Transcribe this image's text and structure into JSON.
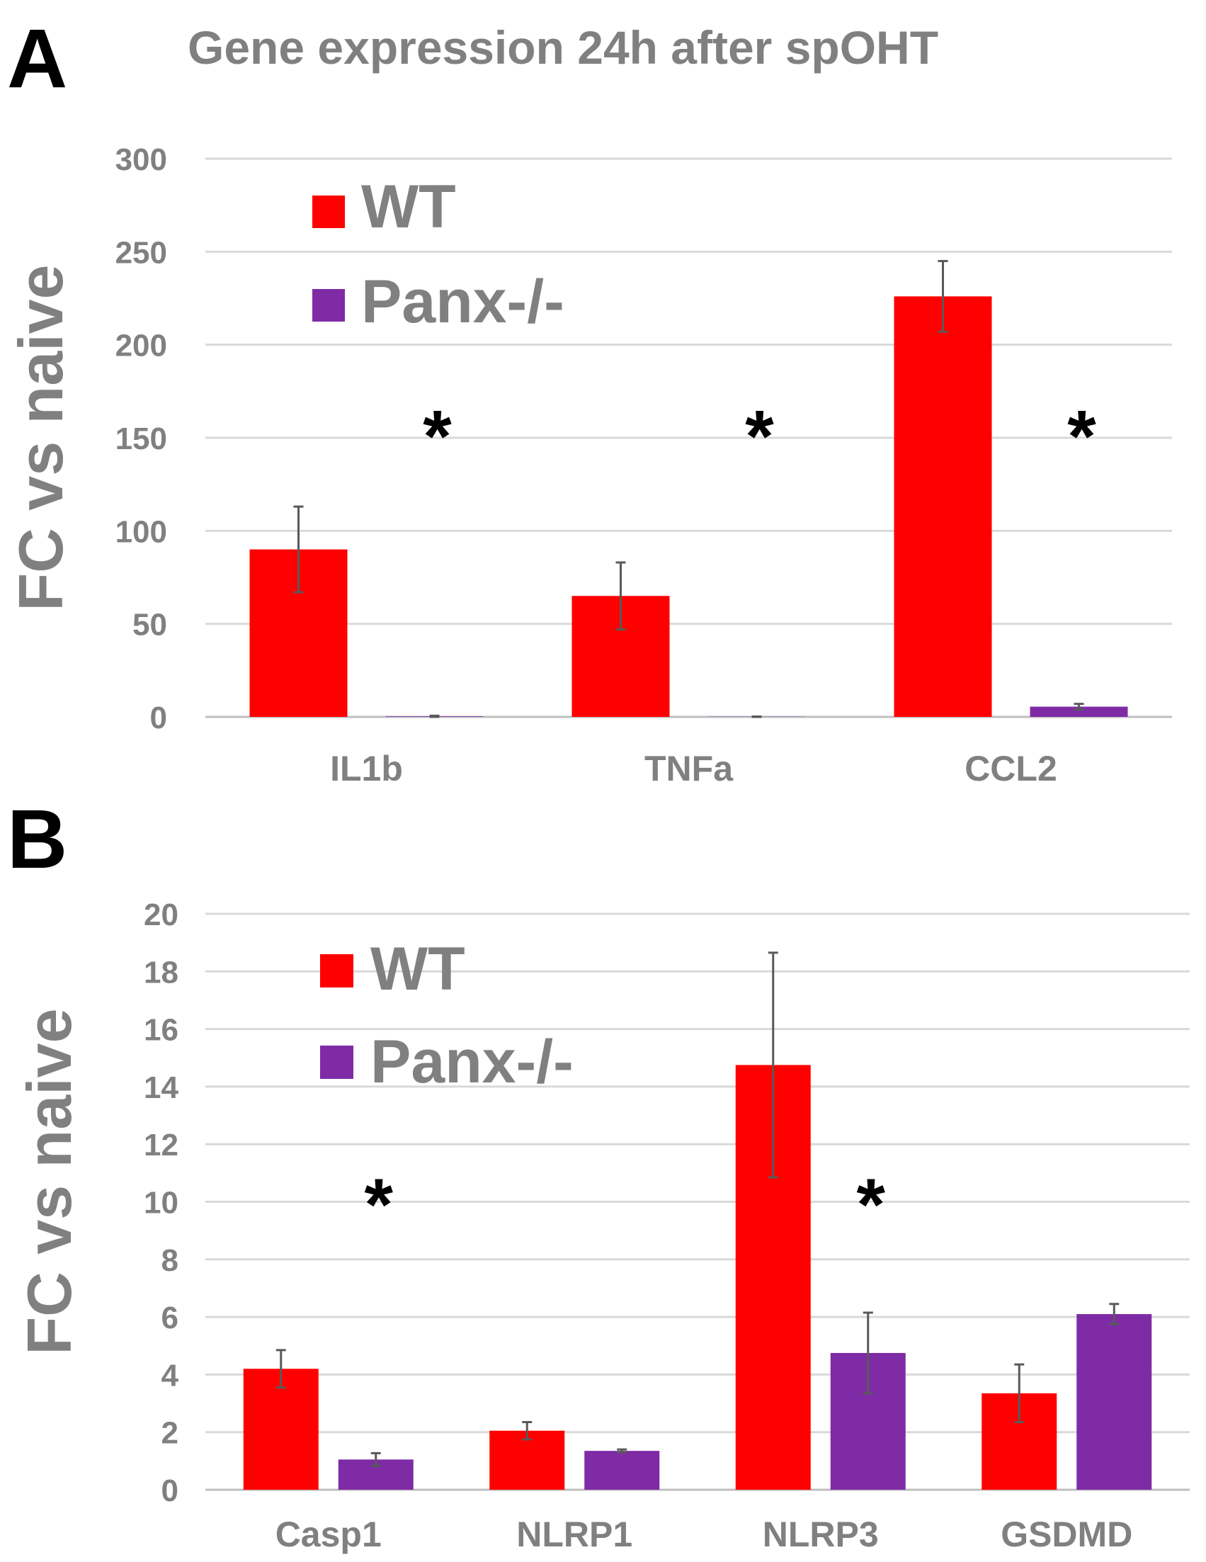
{
  "colors": {
    "wt": "#FF0000",
    "panx": "#7F2BA6",
    "text_gray": "#808080",
    "grid": "#D9D9D9",
    "axis": "#BFBFBF",
    "errorbar": "#595959"
  },
  "panels": {
    "a": {
      "label": "A"
    },
    "b": {
      "label": "B"
    }
  },
  "chart_data": [
    {
      "panel": "A",
      "type": "bar",
      "title": "Gene expression 24h after spOHT",
      "ylabel": "FC vs naive",
      "xlabel": "",
      "ylim": [
        0,
        300
      ],
      "yticks": [
        0,
        50,
        100,
        150,
        200,
        250,
        300
      ],
      "grid": true,
      "legend_position": "top-left",
      "categories": [
        "IL1b",
        "TNFa",
        "CCL2"
      ],
      "series": [
        {
          "name": "WT",
          "color": "#FF0000",
          "values": [
            90,
            65,
            226
          ],
          "errors": [
            23,
            18,
            19
          ]
        },
        {
          "name": "Panx-/-",
          "color": "#7F2BA6",
          "values": [
            0.3,
            0.1,
            5.5
          ],
          "errors": [
            0.3,
            0.1,
            1.5
          ]
        }
      ],
      "annotations": [
        {
          "text": "*",
          "category": "IL1b",
          "y": 160
        },
        {
          "text": "*",
          "category": "TNFa",
          "y": 160
        },
        {
          "text": "*",
          "category": "CCL2",
          "y": 160
        }
      ]
    },
    {
      "panel": "B",
      "type": "bar",
      "title": "",
      "ylabel": "FC vs naive",
      "xlabel": "",
      "ylim": [
        0,
        20
      ],
      "yticks": [
        0,
        2,
        4,
        6,
        8,
        10,
        12,
        14,
        16,
        18,
        20
      ],
      "grid": true,
      "legend_position": "top-left",
      "categories": [
        "Casp1",
        "NLRP1",
        "NLRP3",
        "GSDMD"
      ],
      "series": [
        {
          "name": "WT",
          "color": "#FF0000",
          "values": [
            4.2,
            2.05,
            14.75,
            3.35
          ],
          "errors": [
            0.65,
            0.3,
            3.9,
            1.0
          ]
        },
        {
          "name": "Panx-/-",
          "color": "#7F2BA6",
          "values": [
            1.05,
            1.35,
            4.75,
            6.1
          ],
          "errors": [
            0.22,
            0.05,
            1.4,
            0.35
          ]
        }
      ],
      "annotations": [
        {
          "text": "*",
          "category": "Casp1",
          "y": 10.5
        },
        {
          "text": "*",
          "category": "NLRP3",
          "y": 10.5
        }
      ]
    }
  ]
}
